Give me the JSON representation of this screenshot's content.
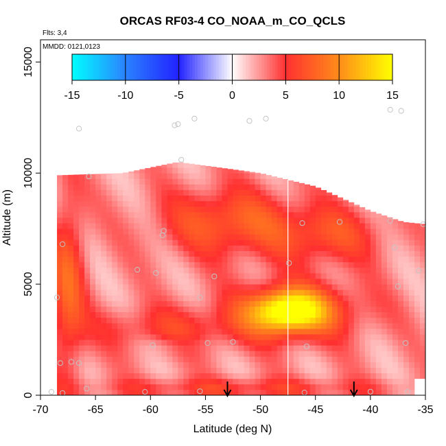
{
  "chart_data": {
    "type": "heatmap",
    "title": "ORCAS RF03-4 CO_NOAA_m_CO_QCLS",
    "flights_note": "Flts: 3,4",
    "dates_note": "MMDD: 0121,0123",
    "xlabel": "Latitude (deg N)",
    "ylabel": "Altitude (m)",
    "xlim": [
      -70,
      -35
    ],
    "ylim": [
      0,
      16000
    ],
    "x_ticks": [
      -70,
      -65,
      -60,
      -55,
      -50,
      -45,
      -40,
      -35
    ],
    "x_tick_labels": [
      "-70",
      "-65",
      "-60",
      "-55",
      "-50",
      "-45",
      "-40",
      "-35"
    ],
    "y_ticks": [
      0,
      5000,
      10000,
      15000
    ],
    "y_tick_labels": [
      "0",
      "5000",
      "10000",
      "15000"
    ],
    "colorbar": {
      "range": [
        -15,
        15
      ],
      "ticks": [
        -15,
        -10,
        -5,
        0,
        5,
        10,
        15
      ],
      "tick_labels": [
        "-15",
        "-10",
        "-5",
        "0",
        "5",
        "10",
        "15"
      ],
      "colors": [
        "#00ffff",
        "#2a82ff",
        "#2222ff",
        "#ffffff",
        "#ff3030",
        "#ff8c1a",
        "#ffff00"
      ]
    },
    "field_domain": {
      "lat_min": -68.5,
      "lat_max": -35,
      "alt_min": 0,
      "alt_max": 10200,
      "top_edge": [
        [
          -68.5,
          9900
        ],
        [
          -62.5,
          10000
        ],
        [
          -57.5,
          10500
        ],
        [
          -50,
          10000
        ],
        [
          -45,
          9400
        ],
        [
          -40,
          8300
        ],
        [
          -37,
          7800
        ],
        [
          -35,
          7700
        ]
      ],
      "bottom_cut": [
        [
          -37,
          0
        ],
        [
          -35,
          0
        ]
      ],
      "features": [
        {
          "name": "upper band",
          "lat": -53,
          "alt": 7800,
          "w_lat": 6,
          "w_alt": 1500,
          "value": 5
        },
        {
          "name": "upper right",
          "lat": -44,
          "alt": 7200,
          "w_lat": 5,
          "w_alt": 1300,
          "value": 4
        },
        {
          "name": "mid core",
          "lat": -47.5,
          "alt": 3800,
          "w_lat": 3.2,
          "w_alt": 900,
          "value": 11
        },
        {
          "name": "mid halo",
          "lat": -46.5,
          "alt": 3800,
          "w_lat": 6,
          "w_alt": 1300,
          "value": 5
        },
        {
          "name": "west column",
          "lat": -67.5,
          "alt": 5000,
          "w_lat": 1.5,
          "w_alt": 4000,
          "value": 5
        },
        {
          "name": "lower band",
          "lat": -58,
          "alt": 3000,
          "w_lat": 8,
          "w_alt": 1000,
          "value": 3
        },
        {
          "name": "surface layer",
          "lat": -52,
          "alt": 300,
          "w_lat": 14,
          "w_alt": 500,
          "value": 3
        },
        {
          "name": "clean gap",
          "lat": -58,
          "alt": 2300,
          "w_lat": 3,
          "w_alt": 400,
          "value": -1
        }
      ]
    },
    "sample_points": [
      [
        -66.5,
        12000
      ],
      [
        -57.5,
        12200
      ],
      [
        -57.8,
        12150
      ],
      [
        -56,
        12450
      ],
      [
        -51,
        12350
      ],
      [
        -49.5,
        12450
      ],
      [
        -38.2,
        12850
      ],
      [
        -37.2,
        12800
      ],
      [
        -65.6,
        9850
      ],
      [
        -57.2,
        10600
      ],
      [
        -58.8,
        7400
      ],
      [
        -58.9,
        7200
      ],
      [
        -46.2,
        7750
      ],
      [
        -42.8,
        7800
      ],
      [
        -38.2,
        7850
      ],
      [
        -35.2,
        7700
      ],
      [
        -37.8,
        6650
      ],
      [
        -68,
        6800
      ],
      [
        -61.2,
        5650
      ],
      [
        -59.5,
        5500
      ],
      [
        -54.2,
        5350
      ],
      [
        -47.4,
        5950
      ],
      [
        -37.5,
        4900
      ],
      [
        -35.6,
        5600
      ],
      [
        -68.5,
        4400
      ],
      [
        -55.5,
        4400
      ],
      [
        -59.8,
        2250
      ],
      [
        -54.8,
        2350
      ],
      [
        -52.5,
        2400
      ],
      [
        -45.8,
        2200
      ],
      [
        -36.8,
        2350
      ],
      [
        -68.2,
        1450
      ],
      [
        -67.2,
        1500
      ],
      [
        -66.5,
        1450
      ],
      [
        -69.0,
        150
      ],
      [
        -68.0,
        100
      ],
      [
        -65.8,
        300
      ],
      [
        -60.5,
        150
      ],
      [
        -55.5,
        180
      ],
      [
        -46.0,
        120
      ],
      [
        -40.0,
        160
      ],
      [
        -36.6,
        150
      ]
    ],
    "profile_line_lat": -47.5,
    "arrows_lat": [
      -53,
      -41.5
    ]
  }
}
